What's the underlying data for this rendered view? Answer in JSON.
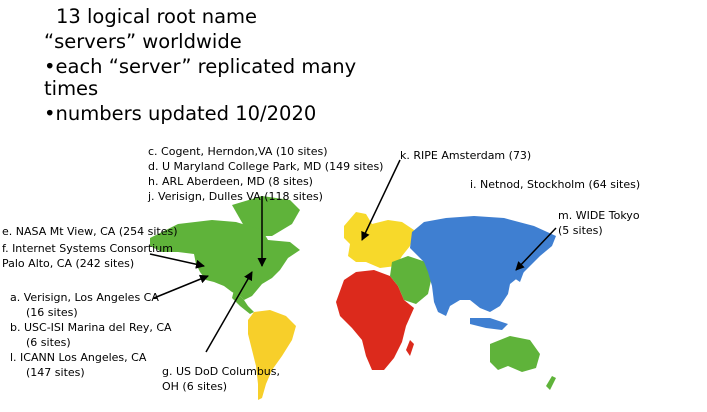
{
  "bullets": {
    "line1": "13 logical root name",
    "line2": "“servers” worldwide",
    "line3": "•each “server” replicated many",
    "line4": "times",
    "line5": "•numbers updated 10/2020"
  },
  "labels": {
    "us_east": [
      "c. Cogent, Herndon,VA (10 sites)",
      "d. U Maryland College Park, MD (149 sites)",
      "h. ARL Aberdeen, MD (8 sites)",
      "j. Verisign, Dulles VA (118 sites)"
    ],
    "ripe": "k. RIPE Amsterdam (73)",
    "netnod": "i. Netnod, Stockholm (64 sites)",
    "wide": [
      "m. WIDE Tokyo",
      "(5 sites)"
    ],
    "nasa": "e. NASA Mt View, CA (254 sites)",
    "isc": [
      "f. Internet Systems Consortium",
      "Palo Alto, CA (242 sites)"
    ],
    "verisign_la": [
      "a. Verisign, Los Angeles CA",
      "(16 sites)"
    ],
    "usc": [
      "b. USC-ISI Marina del Rey, CA",
      "(6 sites)"
    ],
    "icann": [
      "l. ICANN Los Angeles, CA",
      "(147 sites)"
    ],
    "dod": [
      "g. US DoD Columbus,",
      "OH (6 sites)"
    ]
  },
  "colors": {
    "north_america": "#5fb33a",
    "south_america": "#f7cf2a",
    "europe": "#f7d92a",
    "africa": "#dc2a1c",
    "middle_east": "#5fb33a",
    "asia": "#3f7fd1",
    "australia": "#5fb33a",
    "greenland": "#5fb33a",
    "arrow": "#000000"
  }
}
